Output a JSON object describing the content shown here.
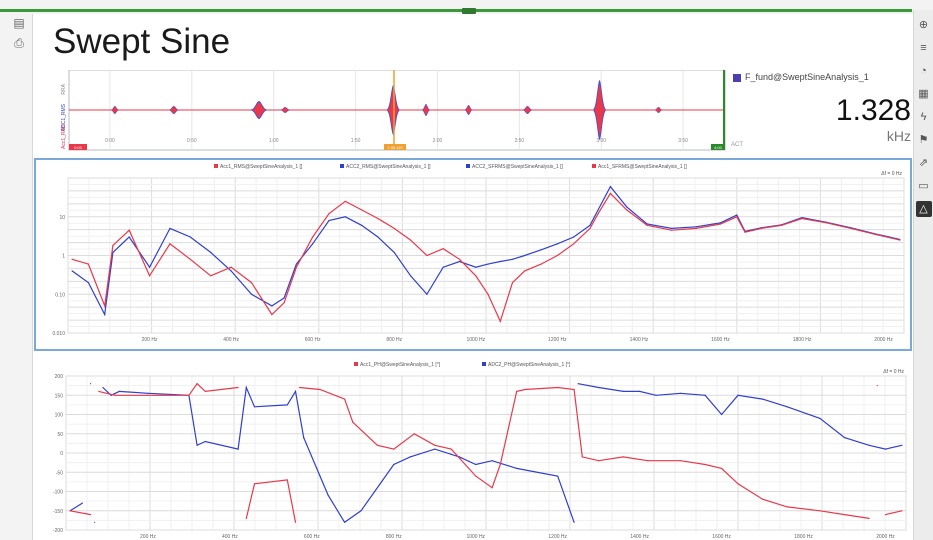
{
  "title": "Swept Sine",
  "overview": {
    "y_axis_labels": [
      "RRA",
      "ADC1_RMS",
      "Acc1_RMS"
    ],
    "x_ticks": [
      "0:00",
      "0:50",
      "1:00",
      "1:50",
      "2:00",
      "2:50",
      "3:00",
      "3:50"
    ],
    "start_marker": "0:00",
    "cursor_marker": "1:39.119",
    "end_marker": "4:00",
    "right_label": "ACT",
    "colors": {
      "red": "#e8384a",
      "blue": "#2f3fd0",
      "cursor": "#f0a030",
      "frame_right": "#2a8a2a"
    }
  },
  "readout": {
    "label": "F_fund@SweptSineAnalysis_1",
    "value": "1.328",
    "unit": "kHz"
  },
  "magnitude_chart": {
    "legend": [
      {
        "name": "Acc1_RMS@SweptSineAnalysis_1 []",
        "color": "#e8384a"
      },
      {
        "name": "ACC2_RMS@SweptSineAnalysis_1 []",
        "color": "#2f3fd0"
      },
      {
        "name": "ACC2_SFRMS@SweptSineAnalysis_1 []",
        "color": "#2f3fd0"
      },
      {
        "name": "Acc1_SFRMS@SweptSineAnalysis_1 []",
        "color": "#e8384a"
      }
    ],
    "df_label": "Δf = 0 Hz",
    "y_ticks": [
      "10",
      "1",
      "0.10",
      "0.010"
    ],
    "x_ticks": [
      "200 Hz",
      "400 Hz",
      "600 Hz",
      "800 Hz",
      "1000 Hz",
      "1200 Hz",
      "1400 Hz",
      "1600 Hz",
      "1800 Hz",
      "2000 Hz"
    ]
  },
  "phase_chart": {
    "legend": [
      {
        "name": "Acc1_PH@SweptSineAnalysis_1 [°]",
        "color": "#e8384a"
      },
      {
        "name": "ADC2_PH@SweptSineAnalysis_1 [°]",
        "color": "#2f3fd0"
      }
    ],
    "df_label": "Δf = 0 Hz",
    "y_ticks": [
      "200",
      "150",
      "100",
      "50",
      "0",
      "-50",
      "-100",
      "-150",
      "-200"
    ],
    "x_ticks": [
      "200 Hz",
      "400 Hz",
      "600 Hz",
      "800 Hz",
      "1000 Hz",
      "1200 Hz",
      "1400 Hz",
      "1600 Hz",
      "1800 Hz",
      "2000 Hz"
    ]
  },
  "chart_data": [
    {
      "type": "line",
      "xlabel": "",
      "ylabel": "",
      "log_y": true,
      "ylim": [
        0.01,
        100
      ],
      "xlim": [
        0,
        2050
      ],
      "grid": true,
      "legend_position": "top",
      "series": [
        {
          "name": "Acc1_RMS@SweptSineAnalysis_1 []",
          "color": "#e8384a",
          "x": [
            10,
            50,
            90,
            110,
            150,
            200,
            250,
            300,
            350,
            400,
            450,
            500,
            530,
            560,
            600,
            640,
            680,
            720,
            760,
            800,
            840,
            880,
            920,
            960,
            1000,
            1030,
            1060,
            1090,
            1120,
            1160,
            1200,
            1240,
            1280,
            1300,
            1330,
            1370,
            1420,
            1480,
            1540,
            1600,
            1640,
            1660,
            1700,
            1750,
            1800,
            1860,
            1920,
            1980,
            2040
          ],
          "y": [
            0.8,
            0.6,
            0.05,
            1.8,
            4.5,
            0.3,
            2.0,
            0.8,
            0.3,
            0.5,
            0.2,
            0.03,
            0.06,
            0.5,
            3.0,
            12.0,
            25.0,
            15.0,
            9.0,
            5.0,
            2.5,
            1.0,
            1.5,
            0.8,
            0.3,
            0.1,
            0.02,
            0.2,
            0.4,
            0.6,
            1.0,
            2.0,
            5.0,
            12.0,
            40.0,
            15.0,
            6.0,
            4.5,
            5.0,
            6.5,
            10.0,
            4.0,
            5.0,
            6.0,
            9.0,
            7.0,
            5.0,
            3.5,
            2.5
          ]
        },
        {
          "name": "ACC2_RMS@SweptSineAnalysis_1 []",
          "color": "#2f3fd0",
          "x": [
            10,
            50,
            90,
            110,
            150,
            200,
            250,
            300,
            350,
            400,
            450,
            500,
            530,
            560,
            600,
            640,
            680,
            720,
            760,
            800,
            840,
            880,
            920,
            960,
            1000,
            1030,
            1060,
            1090,
            1120,
            1160,
            1200,
            1240,
            1280,
            1300,
            1330,
            1370,
            1420,
            1480,
            1540,
            1600,
            1640,
            1660,
            1700,
            1750,
            1800,
            1860,
            1920,
            1980,
            2040
          ],
          "y": [
            0.4,
            0.2,
            0.03,
            1.2,
            3.0,
            0.5,
            5.0,
            3.0,
            1.2,
            0.4,
            0.1,
            0.05,
            0.08,
            0.6,
            2.0,
            8.0,
            10.0,
            6.0,
            3.0,
            1.2,
            0.3,
            0.1,
            0.5,
            0.7,
            0.5,
            0.6,
            0.7,
            0.8,
            1.0,
            1.4,
            2.0,
            3.0,
            6.0,
            15.0,
            60.0,
            18.0,
            6.5,
            5.0,
            5.5,
            7.0,
            11.0,
            4.2,
            5.2,
            6.2,
            9.5,
            7.2,
            5.2,
            3.6,
            2.6
          ]
        }
      ]
    },
    {
      "type": "line",
      "xlabel": "",
      "ylabel": "",
      "ylim": [
        -200,
        200
      ],
      "xlim": [
        0,
        2050
      ],
      "grid": true,
      "legend_position": "top",
      "series": [
        {
          "name": "Acc1_PH@SweptSineAnalysis_1 [°]",
          "color": "#e8384a",
          "x": [
            10,
            60,
            80,
            120,
            200,
            300,
            320,
            340,
            420,
            440,
            460,
            540,
            560,
            570,
            620,
            680,
            700,
            760,
            800,
            850,
            900,
            940,
            1000,
            1040,
            1060,
            1100,
            1120,
            1200,
            1240,
            1260,
            1300,
            1360,
            1420,
            1500,
            1560,
            1600,
            1640,
            1700,
            1760,
            1840,
            1900,
            1960,
            1980,
            2000,
            2040
          ],
          "y": [
            -150,
            -160,
            160,
            150,
            150,
            150,
            180,
            160,
            170,
            -170,
            -80,
            -70,
            -180,
            170,
            165,
            140,
            80,
            20,
            10,
            50,
            20,
            10,
            -60,
            -90,
            -30,
            160,
            165,
            170,
            165,
            -10,
            -20,
            -10,
            -20,
            -20,
            -30,
            -40,
            -80,
            -120,
            -140,
            -150,
            -160,
            -170,
            175,
            -160,
            -150
          ]
        },
        {
          "name": "ADC2_PH@SweptSineAnalysis_1 [°]",
          "color": "#2f3fd0",
          "x": [
            10,
            40,
            60,
            70,
            90,
            110,
            130,
            200,
            300,
            320,
            340,
            420,
            440,
            460,
            540,
            560,
            580,
            620,
            640,
            680,
            720,
            800,
            840,
            900,
            960,
            1000,
            1040,
            1100,
            1200,
            1240,
            1250,
            1300,
            1360,
            1400,
            1440,
            1500,
            1560,
            1600,
            1640,
            1700,
            1760,
            1840,
            1900,
            1960,
            2000,
            2040
          ],
          "y": [
            -150,
            -130,
            180,
            -180,
            170,
            150,
            160,
            155,
            150,
            20,
            30,
            10,
            170,
            120,
            125,
            160,
            40,
            -60,
            -110,
            -180,
            -150,
            -30,
            -10,
            10,
            -10,
            -30,
            -20,
            -40,
            -60,
            -180,
            180,
            170,
            160,
            160,
            150,
            155,
            150,
            100,
            150,
            140,
            120,
            90,
            40,
            20,
            10,
            20
          ]
        }
      ]
    }
  ]
}
